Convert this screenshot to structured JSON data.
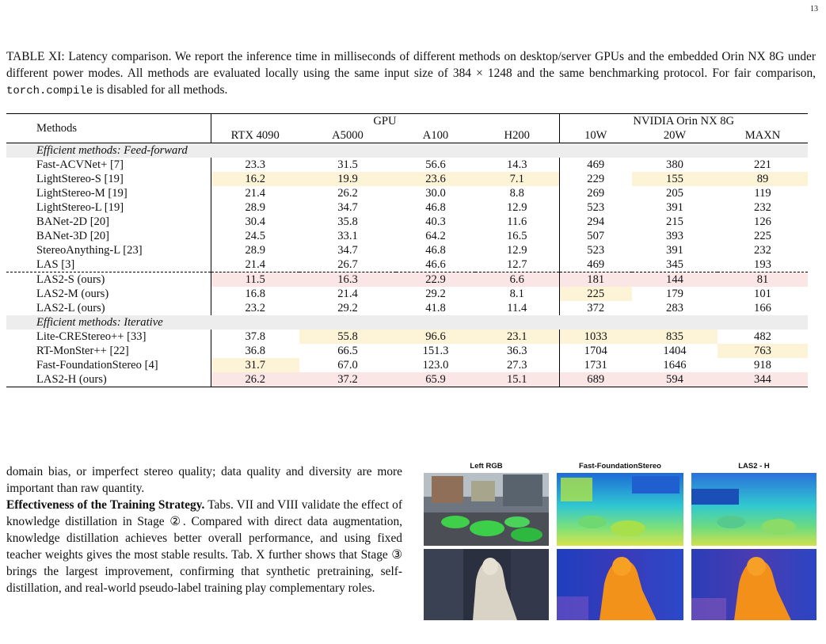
{
  "page_number": "13",
  "caption": {
    "pre": "TABLE XI: Latency comparison. We report the inference time in milliseconds of different methods on desktop/server GPUs and the embedded Orin NX 8G under different power modes. All methods are evaluated locally using the same input size of 384 × 1248 and the same benchmarking protocol. For fair comparison, ",
    "code": "torch.compile",
    "post": " is disabled for all methods."
  },
  "table": {
    "methods_label": "Methods",
    "gpu_label": "GPU",
    "orin_label": "NVIDIA Orin NX 8G",
    "columns": [
      "RTX 4090",
      "A5000",
      "A100",
      "H200",
      "10W",
      "20W",
      "MAXN"
    ],
    "groups": [
      {
        "label": "Efficient methods: Feed-forward",
        "rows": [
          {
            "method": "Fast-ACVNet+ [7]",
            "values": [
              "23.3",
              "31.5",
              "56.6",
              "14.3",
              "469",
              "380",
              "221"
            ],
            "hl": [],
            "bold": false
          },
          {
            "method": "LightStereo-S [19]",
            "values": [
              "16.2",
              "19.9",
              "23.6",
              "7.1",
              "229",
              "155",
              "89"
            ],
            "hl": [
              0,
              1,
              2,
              3,
              5,
              6
            ],
            "bold": false
          },
          {
            "method": "LightStereo-M [19]",
            "values": [
              "21.4",
              "26.2",
              "30.0",
              "8.8",
              "269",
              "205",
              "119"
            ],
            "hl": [],
            "bold": false
          },
          {
            "method": "LightStereo-L [19]",
            "values": [
              "28.9",
              "34.7",
              "46.8",
              "12.9",
              "523",
              "391",
              "232"
            ],
            "hl": [],
            "bold": false
          },
          {
            "method": "BANet-2D [20]",
            "values": [
              "30.4",
              "35.8",
              "40.3",
              "11.6",
              "294",
              "215",
              "126"
            ],
            "hl": [],
            "bold": false
          },
          {
            "method": "BANet-3D [20]",
            "values": [
              "24.5",
              "33.1",
              "64.2",
              "16.5",
              "507",
              "393",
              "225"
            ],
            "hl": [],
            "bold": false
          },
          {
            "method": "StereoAnything-L [23]",
            "values": [
              "28.9",
              "34.7",
              "46.8",
              "12.9",
              "523",
              "391",
              "232"
            ],
            "hl": [],
            "bold": false
          },
          {
            "method": "LAS [3]",
            "values": [
              "21.4",
              "26.7",
              "46.6",
              "12.7",
              "469",
              "345",
              "193"
            ],
            "hl": [],
            "bold": false
          },
          {
            "method": "LAS2-S (ours)",
            "values": [
              "11.5",
              "16.3",
              "22.9",
              "6.6",
              "181",
              "144",
              "81"
            ],
            "hl": [],
            "bold": true,
            "dashed": true
          },
          {
            "method": "LAS2-M (ours)",
            "values": [
              "16.8",
              "21.4",
              "29.2",
              "8.1",
              "225",
              "179",
              "101"
            ],
            "hl": [
              4
            ],
            "bold": false
          },
          {
            "method": "LAS2-L (ours)",
            "values": [
              "23.2",
              "29.2",
              "41.8",
              "11.4",
              "372",
              "283",
              "166"
            ],
            "hl": [],
            "bold": false
          }
        ]
      },
      {
        "label": "Efficient methods: Iterative",
        "rows": [
          {
            "method": "Lite-CREStereo++ [33]",
            "values": [
              "37.8",
              "55.8",
              "96.6",
              "23.1",
              "1033",
              "835",
              "482"
            ],
            "hl": [
              1,
              2,
              3,
              4,
              5
            ],
            "bold": false
          },
          {
            "method": "RT-MonSter++ [22]",
            "values": [
              "36.8",
              "66.5",
              "151.3",
              "36.3",
              "1704",
              "1404",
              "763"
            ],
            "hl": [
              6
            ],
            "bold": false
          },
          {
            "method": "Fast-FoundationStereo [4]",
            "values": [
              "31.7",
              "67.0",
              "123.0",
              "27.3",
              "1731",
              "1646",
              "918"
            ],
            "hl": [
              0
            ],
            "bold": false
          },
          {
            "method": "LAS2-H (ours)",
            "values": [
              "26.2",
              "37.2",
              "65.9",
              "15.1",
              "689",
              "594",
              "344"
            ],
            "hl": [],
            "bold": true
          }
        ]
      }
    ]
  },
  "body": {
    "p1": "domain bias, or imperfect stereo quality; data quality and diversity are more important than raw quantity.",
    "p2_title": "Effectiveness of the Training Strategy.",
    "p2": " Tabs. VII and VIII validate the effect of knowledge distillation in Stage ②. Compared with direct data augmentation, knowledge distillation achieves better overall performance, and using fixed teacher weights gives the most stable results. Tab. X further shows that Stage ③ brings the largest improvement, confirming that synthetic pretraining, self-distillation, and real-world pseudo-label training play complementary roles."
  },
  "figure": {
    "titles": [
      "Left RGB",
      "Fast-FoundationStereo",
      "LAS2 - H"
    ]
  },
  "colors": {
    "highlight_second": "#fdf3d6",
    "highlight_best": "#fbe6e6",
    "group_bg": "#ededed"
  }
}
